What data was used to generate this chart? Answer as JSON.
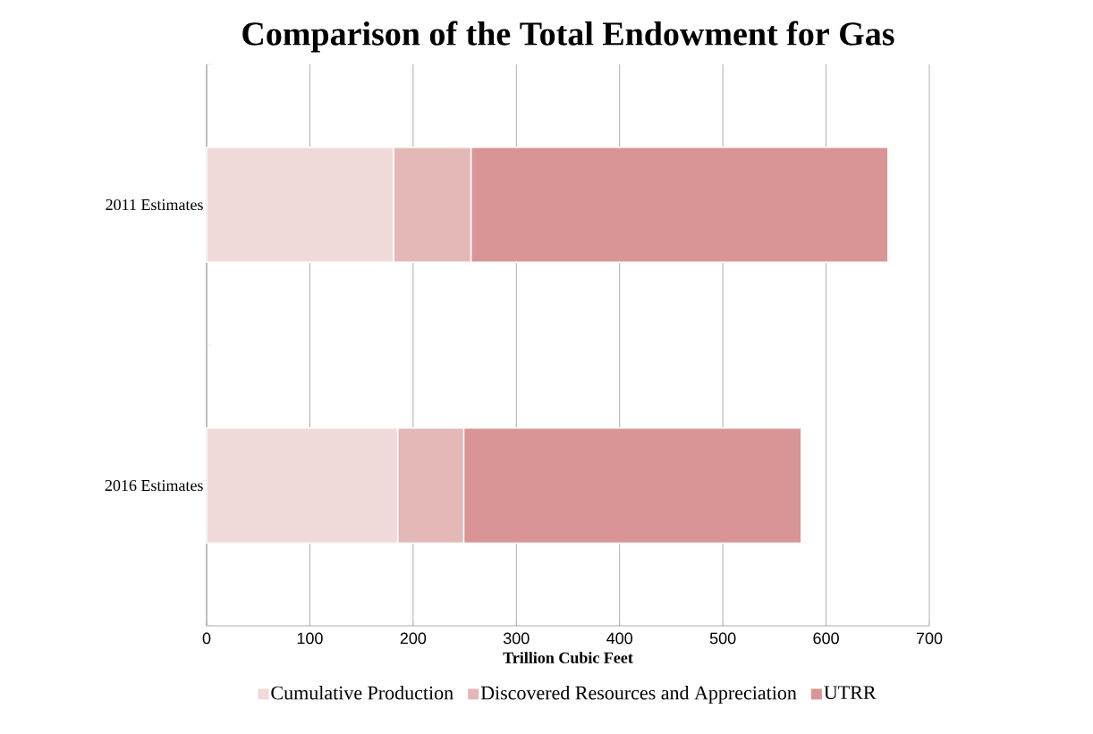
{
  "chart_data": {
    "type": "bar",
    "orientation": "horizontal",
    "stacked": true,
    "title": "Comparison of the Total Endowment for Gas",
    "xlabel": "Trillion  Cubic Feet",
    "categories": [
      "2011 Estimates",
      "2016 Estimates"
    ],
    "series": [
      {
        "name": "Cumulative Production",
        "color": "#f0dada",
        "values": [
          181,
          185
        ]
      },
      {
        "name": "Discovered Resources and Appreciation",
        "color": "#e5b8b8",
        "values": [
          75,
          64
        ]
      },
      {
        "name": "UTRR",
        "color": "#d99595",
        "values": [
          404,
          327
        ]
      }
    ],
    "xlim": [
      0,
      700
    ],
    "xticks": [
      0,
      100,
      200,
      300,
      400,
      500,
      600,
      700
    ],
    "grid": "x",
    "legend": "bottom"
  }
}
